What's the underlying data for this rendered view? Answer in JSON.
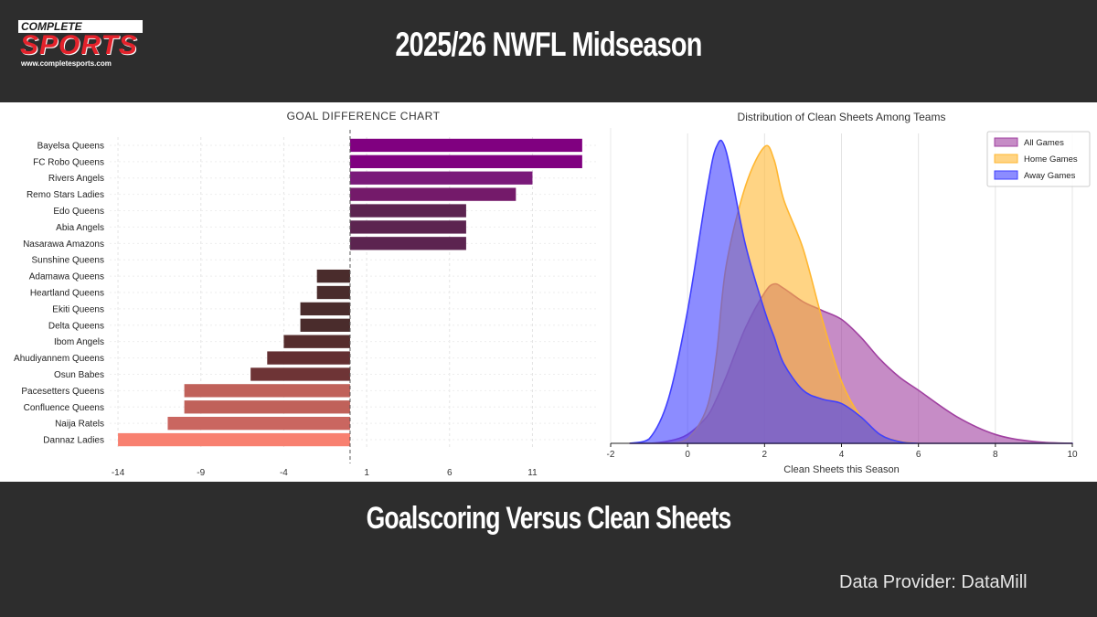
{
  "header": {
    "logo_top": "COMPLETE",
    "logo_main": "SPORTS",
    "logo_url": "www.completesports.com",
    "title": "2025/26 NWFL Midseason"
  },
  "footer": {
    "subtitle": "Goalscoring Versus Clean Sheets",
    "provider": "Data Provider:  DataMill"
  },
  "chart_data": [
    {
      "type": "bar",
      "orientation": "horizontal",
      "title": "GOAL DIFFERENCE CHART",
      "xlabel": "",
      "ylabel": "",
      "xlim": [
        -14.5,
        15
      ],
      "xticks": [
        -14,
        -9,
        -4,
        1,
        6,
        11
      ],
      "reference_line": 0,
      "categories": [
        "Bayelsa Queens",
        "FC Robo Queens",
        "Rivers Angels",
        "Remo Stars Ladies",
        "Edo Queens",
        "Abia Angels",
        "Nasarawa Amazons",
        "Sunshine Queens",
        "Adamawa Queens",
        "Heartland Queens",
        "Ekiti Queens",
        "Delta Queens",
        "Ibom Angels",
        "Ahudiyannem Queens",
        "Osun Babes",
        "Pacesetters Queens",
        "Confluence Queens",
        "Naija Ratels",
        "Dannaz Ladies"
      ],
      "values": [
        14,
        14,
        11,
        10,
        7,
        7,
        7,
        0,
        -2,
        -2,
        -3,
        -3,
        -4,
        -5,
        -6,
        -10,
        -10,
        -11,
        -14
      ],
      "colors": [
        "#800080",
        "#800080",
        "#7a1a7a",
        "#741a6a",
        "#5c2450",
        "#5c2450",
        "#5c2450",
        "#ffffff",
        "#4a2c2c",
        "#4a2c2c",
        "#4a2c2c",
        "#4a2c2c",
        "#552c2c",
        "#632f32",
        "#6e3436",
        "#c0615a",
        "#c0615a",
        "#ca6660",
        "#f88070"
      ],
      "grid": true
    },
    {
      "type": "area",
      "subtype": "density",
      "title": "Distribution of Clean Sheets Among Teams",
      "xlabel": "Clean Sheets this Season",
      "ylabel": "",
      "xlim": [
        -2,
        10
      ],
      "xticks": [
        -2,
        0,
        2,
        4,
        6,
        8,
        10
      ],
      "legend_position": "top-right",
      "grid": true,
      "x": [
        -1.5,
        -1,
        -0.5,
        0,
        0.5,
        0.75,
        1,
        1.5,
        2,
        2.25,
        2.5,
        3,
        3.5,
        4,
        4.5,
        5,
        5.5,
        6,
        7,
        8,
        9,
        10
      ],
      "series": [
        {
          "name": "All Games",
          "color": "#a040a0",
          "values": [
            0,
            0,
            0.005,
            0.02,
            0.06,
            0.1,
            0.15,
            0.26,
            0.34,
            0.36,
            0.35,
            0.32,
            0.3,
            0.28,
            0.24,
            0.19,
            0.15,
            0.12,
            0.06,
            0.02,
            0.004,
            0
          ]
        },
        {
          "name": "Home Games",
          "color": "#ffb732",
          "values": [
            0,
            0,
            0,
            0.01,
            0.08,
            0.2,
            0.4,
            0.58,
            0.67,
            0.64,
            0.55,
            0.44,
            0.28,
            0.14,
            0.06,
            0.02,
            0.005,
            0,
            0,
            0,
            0,
            0
          ]
        },
        {
          "name": "Away Games",
          "color": "#4040ff",
          "values": [
            0,
            0.01,
            0.1,
            0.3,
            0.57,
            0.67,
            0.66,
            0.45,
            0.3,
            0.24,
            0.18,
            0.12,
            0.1,
            0.09,
            0.06,
            0.02,
            0.004,
            0,
            0,
            0,
            0,
            0
          ]
        }
      ]
    }
  ]
}
